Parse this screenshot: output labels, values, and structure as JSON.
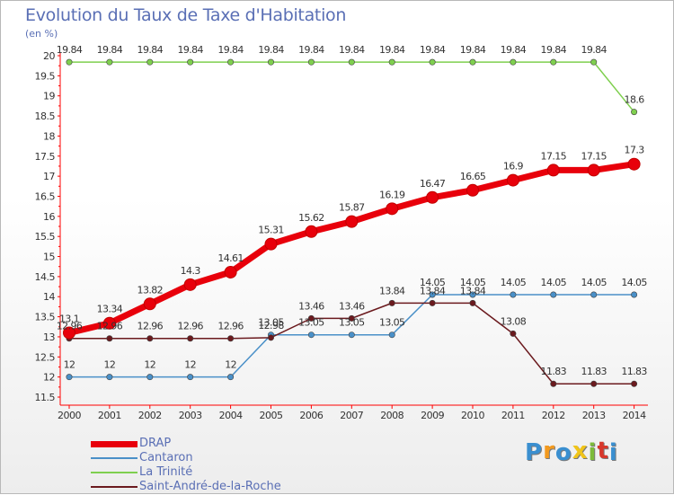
{
  "header": {
    "title": "Evolution du Taux de Taxe d'Habitation",
    "subtitle": "(en %)"
  },
  "logo": {
    "letters": [
      "P",
      "r",
      "o",
      "x",
      "i",
      "t",
      "i"
    ],
    "colors": [
      "#3a8fd0",
      "#f39a1e",
      "#3a8fd0",
      "#f0c419",
      "#7dbb3a",
      "#d7372b",
      "#3a8fd0"
    ]
  },
  "chart_data": {
    "type": "line",
    "title": "Evolution du Taux de Taxe d'Habitation",
    "ylabel": "(en %)",
    "xlabel": "",
    "categories": [
      "2000",
      "2001",
      "2002",
      "2003",
      "2004",
      "2005",
      "2006",
      "2007",
      "2008",
      "2009",
      "2010",
      "2011",
      "2012",
      "2013",
      "2014"
    ],
    "ylim": [
      11.5,
      20
    ],
    "yticks": [
      "20",
      "19.5",
      "19",
      "18.5",
      "18",
      "17.5",
      "17",
      "16.5",
      "16",
      "15.5",
      "15",
      "14.5",
      "14",
      "13.5",
      "13",
      "12.5",
      "12",
      "11.5"
    ],
    "grid": false,
    "legend_position": "bottom-left",
    "series": [
      {
        "name": "DRAP",
        "color": "#e8000b",
        "values": [
          13.1,
          13.34,
          13.82,
          14.3,
          14.61,
          15.31,
          15.62,
          15.87,
          16.19,
          16.47,
          16.65,
          16.9,
          17.15,
          17.15,
          17.3
        ],
        "labels": [
          "13.1",
          "13.34",
          "13.82",
          "14.3",
          "14.61",
          "15.31",
          "15.62",
          "15.87",
          "16.19",
          "16.47",
          "16.65",
          "16.9",
          "17.15",
          "17.15",
          "17.3"
        ]
      },
      {
        "name": "Cantaron",
        "color": "#4a90c8",
        "values": [
          12,
          12,
          12,
          12,
          12,
          13.05,
          13.05,
          13.05,
          13.05,
          14.05,
          14.05,
          14.05,
          14.05,
          14.05,
          14.05
        ],
        "labels": [
          "12",
          "12",
          "12",
          "12",
          "12",
          "13.05",
          "13.05",
          "13.05",
          "13.05",
          "14.05",
          "14.05",
          "14.05",
          "14.05",
          "14.05",
          "14.05"
        ]
      },
      {
        "name": "La Trinité",
        "color": "#7fcf4f",
        "values": [
          19.84,
          19.84,
          19.84,
          19.84,
          19.84,
          19.84,
          19.84,
          19.84,
          19.84,
          19.84,
          19.84,
          19.84,
          19.84,
          19.84,
          18.6
        ],
        "labels": [
          "19.84",
          "19.84",
          "19.84",
          "19.84",
          "19.84",
          "19.84",
          "19.84",
          "19.84",
          "19.84",
          "19.84",
          "19.84",
          "19.84",
          "19.84",
          "19.84",
          "18.6"
        ]
      },
      {
        "name": "Saint-André-de-la-Roche",
        "color": "#6b1a1e",
        "values": [
          12.96,
          12.96,
          12.96,
          12.96,
          12.96,
          12.98,
          13.46,
          13.46,
          13.84,
          13.84,
          13.84,
          13.08,
          11.83,
          11.83,
          11.83
        ],
        "labels": [
          "12.96",
          "12.96",
          "12.96",
          "12.96",
          "12.96",
          "12.98",
          "13.46",
          "13.46",
          "13.84",
          "13.84",
          "13.84",
          "13.08",
          "11.83",
          "11.83",
          "11.83"
        ]
      }
    ]
  }
}
